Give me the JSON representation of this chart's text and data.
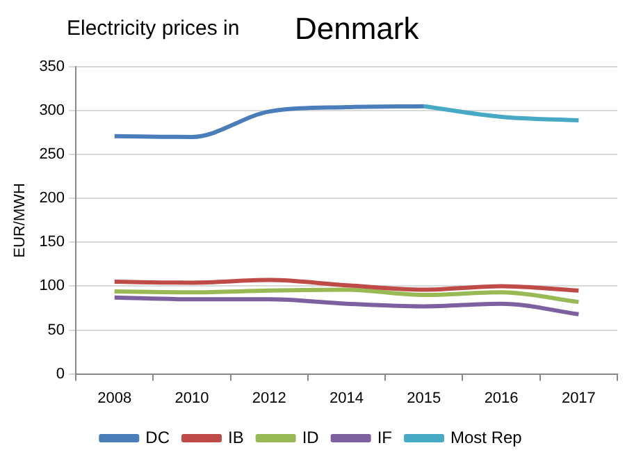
{
  "chart_data": {
    "type": "line",
    "title": "Electricity prices in",
    "subtitle": "Denmark",
    "ylabel": "EUR/MWH",
    "categories": [
      "2008",
      "2010",
      "2012",
      "2014",
      "2015",
      "2016",
      "2017"
    ],
    "series": [
      {
        "name": "DC",
        "color": "#4a7ebb",
        "values": [
          271,
          270,
          299,
          304,
          305,
          null,
          null
        ]
      },
      {
        "name": "IB",
        "color": "#be4b48",
        "values": [
          105,
          104,
          107,
          101,
          96,
          100,
          95
        ]
      },
      {
        "name": "ID",
        "color": "#98b954",
        "values": [
          94,
          93,
          95,
          96,
          90,
          93,
          82
        ]
      },
      {
        "name": "IF",
        "color": "#7d60a0",
        "values": [
          87,
          85,
          85,
          80,
          77,
          80,
          68
        ]
      },
      {
        "name": "Most Rep",
        "color": "#46aac5",
        "values": [
          null,
          null,
          null,
          null,
          305,
          293,
          289
        ]
      }
    ],
    "ylim": [
      0,
      350
    ],
    "yticks": [
      0,
      50,
      100,
      150,
      200,
      250,
      300,
      350
    ],
    "grid": "y",
    "legend": "bottom",
    "marker": "none",
    "line_style": "solid"
  }
}
